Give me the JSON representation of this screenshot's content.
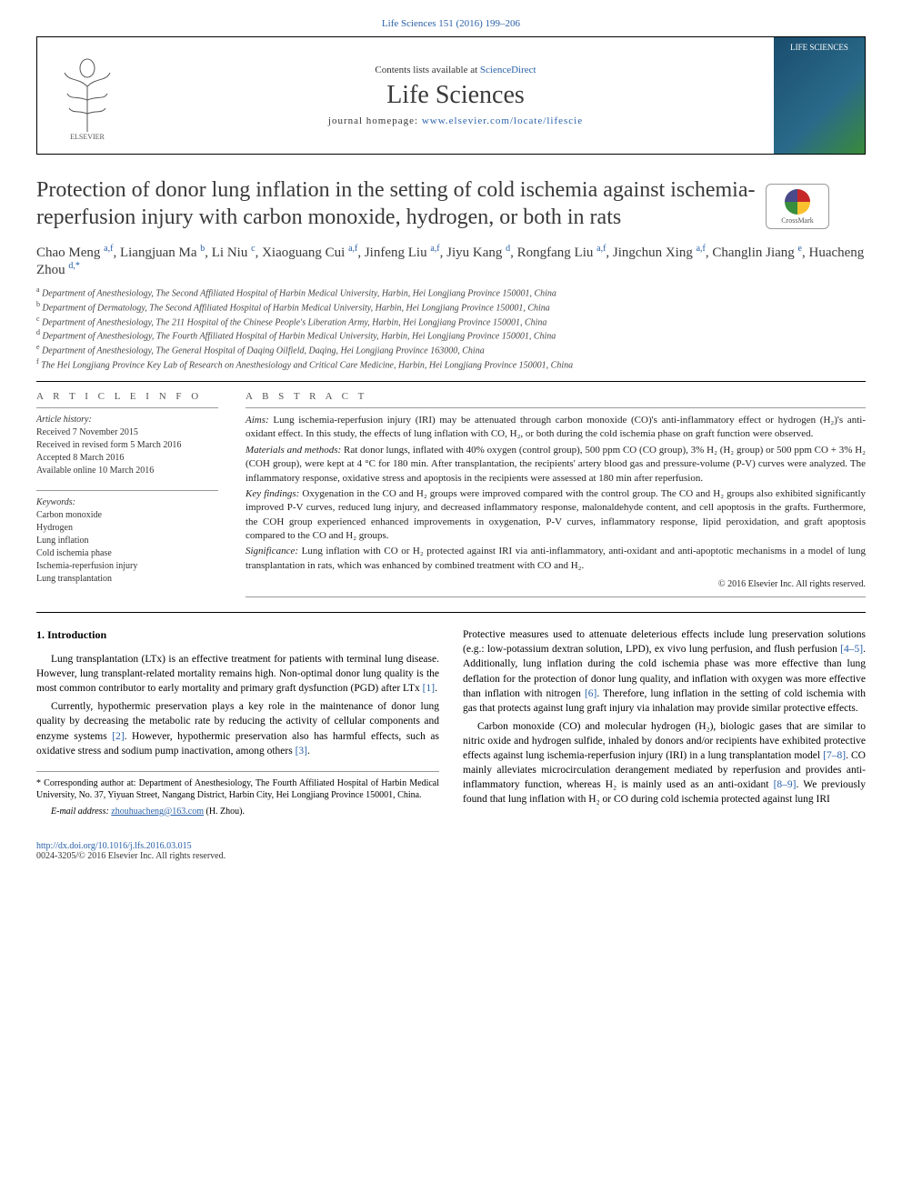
{
  "header": {
    "citation": "Life Sciences 151 (2016) 199–206",
    "contents_prefix": "Contents lists available at ",
    "contents_link": "ScienceDirect",
    "journal_name": "Life Sciences",
    "homepage_label": "journal homepage: ",
    "homepage_url": "www.elsevier.com/locate/lifescie",
    "cover_text": "LIFE SCIENCES",
    "crossmark": "CrossMark"
  },
  "title": "Protection of donor lung inflation in the setting of cold ischemia against ischemia-reperfusion injury with carbon monoxide, hydrogen, or both in rats",
  "authors_html": "Chao Meng <sup>a,f</sup>, Liangjuan Ma <sup>b</sup>, Li Niu <sup>c</sup>, Xiaoguang Cui <sup>a,f</sup>, Jinfeng Liu <sup>a,f</sup>, Jiyu Kang <sup>d</sup>, Rongfang Liu <sup>a,f</sup>, Jingchun Xing <sup>a,f</sup>, Changlin Jiang <sup>e</sup>, Huacheng Zhou <sup>d,*</sup>",
  "affiliations": [
    {
      "k": "a",
      "t": "Department of Anesthesiology, The Second Affiliated Hospital of Harbin Medical University, Harbin, Hei Longjiang Province 150001, China"
    },
    {
      "k": "b",
      "t": "Department of Dermatology, The Second Affiliated Hospital of Harbin Medical University, Harbin, Hei Longjiang Province 150001, China"
    },
    {
      "k": "c",
      "t": "Department of Anesthesiology, The 211 Hospital of the Chinese People's Liberation Army, Harbin, Hei Longjiang Province 150001, China"
    },
    {
      "k": "d",
      "t": "Department of Anesthesiology, The Fourth Affiliated Hospital of Harbin Medical University, Harbin, Hei Longjiang Province 150001, China"
    },
    {
      "k": "e",
      "t": "Department of Anesthesiology, The General Hospital of Daqing Oilfield, Daqing, Hei Longjiang Province 163000, China"
    },
    {
      "k": "f",
      "t": "The Hei Longjiang Province Key Lab of Research on Anesthesiology and Critical Care Medicine, Harbin, Hei Longjiang Province 150001, China"
    }
  ],
  "info": {
    "heading": "A R T I C L E   I N F O",
    "history_hdr": "Article history:",
    "history": [
      "Received 7 November 2015",
      "Received in revised form 5 March 2016",
      "Accepted 8 March 2016",
      "Available online 10 March 2016"
    ],
    "keywords_hdr": "Keywords:",
    "keywords": [
      "Carbon monoxide",
      "Hydrogen",
      "Lung inflation",
      "Cold ischemia phase",
      "Ischemia-reperfusion injury",
      "Lung transplantation"
    ]
  },
  "abstract": {
    "heading": "A B S T R A C T",
    "aims_lbl": "Aims:",
    "aims": "Lung ischemia-reperfusion injury (IRI) may be attenuated through carbon monoxide (CO)'s anti-inflammatory effect or hydrogen (H₂)'s anti-oxidant effect. In this study, the effects of lung inflation with CO, H₂, or both during the cold ischemia phase on graft function were observed.",
    "methods_lbl": "Materials and methods:",
    "methods": "Rat donor lungs, inflated with 40% oxygen (control group), 500 ppm CO (CO group), 3% H₂ (H₂ group) or 500 ppm CO + 3% H₂ (COH group), were kept at 4 °C for 180 min. After transplantation, the recipients' artery blood gas and pressure-volume (P-V) curves were analyzed. The inflammatory response, oxidative stress and apoptosis in the recipients were assessed at 180 min after reperfusion.",
    "findings_lbl": "Key findings:",
    "findings": "Oxygenation in the CO and H₂ groups were improved compared with the control group. The CO and H₂ groups also exhibited significantly improved P-V curves, reduced lung injury, and decreased inflammatory response, malonaldehyde content, and cell apoptosis in the grafts. Furthermore, the COH group experienced enhanced improvements in oxygenation, P-V curves, inflammatory response, lipid peroxidation, and graft apoptosis compared to the CO and H₂ groups.",
    "significance_lbl": "Significance:",
    "significance": "Lung inflation with CO or H₂ protected against IRI via anti-inflammatory, anti-oxidant and anti-apoptotic mechanisms in a model of lung transplantation in rats, which was enhanced by combined treatment with CO and H₂.",
    "copyright": "© 2016 Elsevier Inc. All rights reserved."
  },
  "body": {
    "intro_heading": "1. Introduction",
    "p1": "Lung transplantation (LTx) is an effective treatment for patients with terminal lung disease. However, lung transplant-related mortality remains high. Non-optimal donor lung quality is the most common contributor to early mortality and primary graft dysfunction (PGD) after LTx ",
    "p1_ref": "[1]",
    "p1_end": ".",
    "p2": "Currently, hypothermic preservation plays a key role in the maintenance of donor lung quality by decreasing the metabolic rate by reducing the activity of cellular components and enzyme systems ",
    "p2_ref": "[2]",
    "p2_mid": ". However, hypothermic preservation also has harmful effects, such as oxidative stress and sodium pump inactivation, among others ",
    "p2_ref2": "[3]",
    "p2_end": ".",
    "p3": "Protective measures used to attenuate deleterious effects include lung preservation solutions (e.g.: low-potassium dextran solution, LPD), ex vivo lung perfusion, and flush perfusion ",
    "p3_ref": "[4–5]",
    "p3_mid": ". Additionally, lung inflation during the cold ischemia phase was more effective than lung deflation for the protection of donor lung quality, and inflation with oxygen was more effective than inflation with nitrogen ",
    "p3_ref2": "[6]",
    "p3_end": ". Therefore, lung inflation in the setting of cold ischemia with gas that protects against lung graft injury via inhalation may provide similar protective effects.",
    "p4": "Carbon monoxide (CO) and molecular hydrogen (H₂), biologic gases that are similar to nitric oxide and hydrogen sulfide, inhaled by donors and/or recipients have exhibited protective effects against lung ischemia-reperfusion injury (IRI) in a lung transplantation model ",
    "p4_ref": "[7–8]",
    "p4_mid": ". CO mainly alleviates microcirculation derangement mediated by reperfusion and provides anti-inflammatory function, whereas H₂ is mainly used as an anti-oxidant ",
    "p4_ref2": "[8–9]",
    "p4_end": ". We previously found that lung inflation with H₂ or CO during cold ischemia protected against lung IRI"
  },
  "footnote": {
    "corr": "* Corresponding author at: Department of Anesthesiology, The Fourth Affiliated Hospital of Harbin Medical University, No. 37, Yiyuan Street, Nangang District, Harbin City, Hei Longjiang Province 150001, China.",
    "email_lbl": "E-mail address: ",
    "email": "zhouhuacheng@163.com",
    "email_suffix": " (H. Zhou)."
  },
  "footer": {
    "doi": "http://dx.doi.org/10.1016/j.lfs.2016.03.015",
    "issn": "0024-3205/© 2016 Elsevier Inc. All rights reserved."
  },
  "colors": {
    "link": "#2960a8",
    "text": "#000000",
    "heading": "#3a3a3a",
    "rule": "#000000"
  }
}
